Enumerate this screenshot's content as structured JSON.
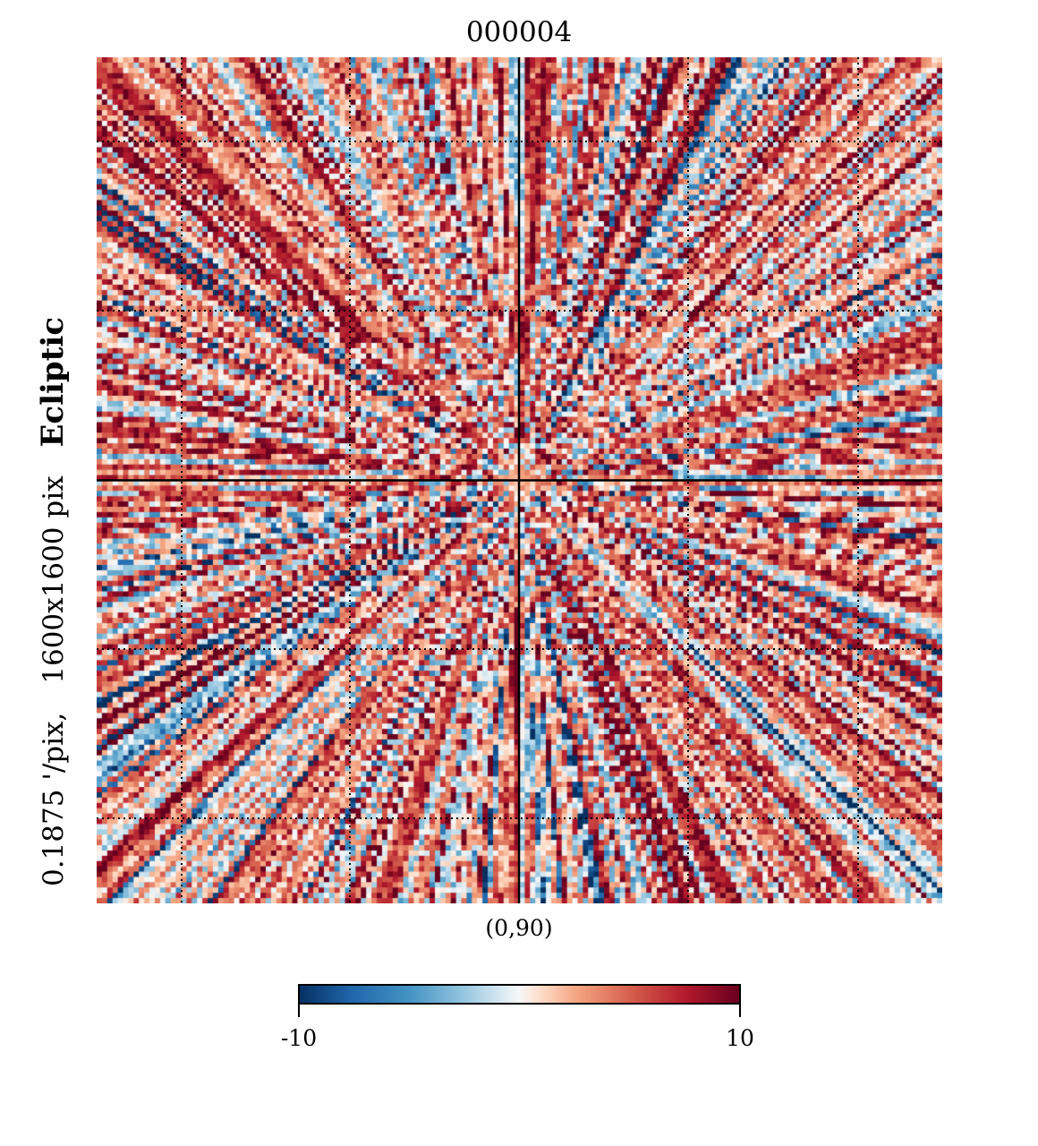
{
  "chart_data": {
    "type": "heatmap",
    "title": "000004",
    "projection_center_label": "(0,90)",
    "ylabel_parts": {
      "coord_system": "Ecliptic",
      "resolution": "0.1875 '/pix,",
      "size": "1600x1600 pix"
    },
    "colorbar": {
      "min": -10,
      "max": 10,
      "min_label": "-10",
      "max_label": "10",
      "colormap": "RdBu_r"
    },
    "graticule": "dotted",
    "axes_crosshair": true,
    "pattern": "radial streaks emanating from projection center",
    "grid_cells": 160
  },
  "colors": {
    "background": "#ffffff",
    "dark_blue": "#053061",
    "mid_blue": "#4393c3",
    "light_blue": "#d1e5f0",
    "neutral": "#f7f7f7",
    "light_red": "#fddbc7",
    "mid_red": "#d6604d",
    "dark_red": "#67001f"
  }
}
